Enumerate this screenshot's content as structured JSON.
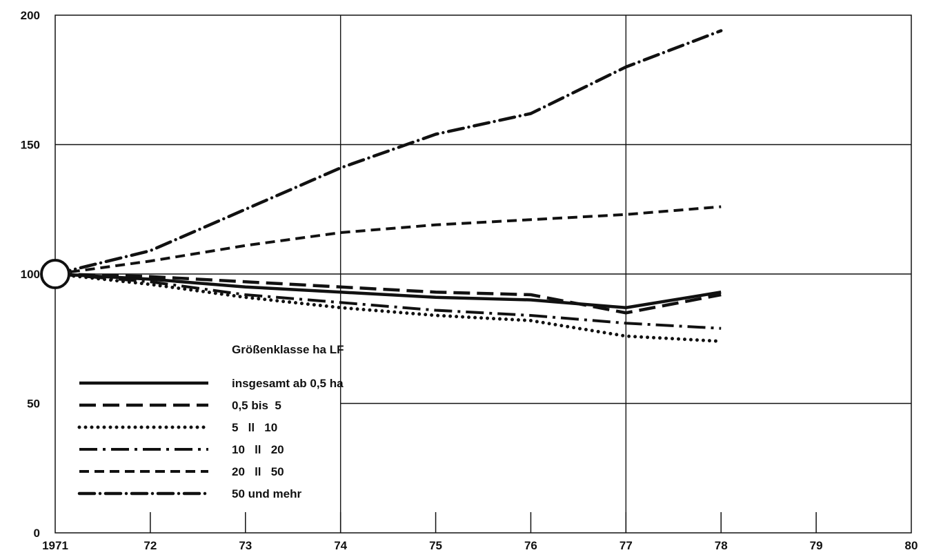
{
  "chart_data": {
    "type": "line",
    "title": "",
    "xlabel": "",
    "ylabel": "",
    "xlim": [
      1971,
      1980
    ],
    "ylim": [
      0,
      200
    ],
    "x_ticks": [
      "1971",
      "72",
      "73",
      "74",
      "75",
      "76",
      "77",
      "78",
      "79",
      "80"
    ],
    "y_ticks": [
      "0",
      "50",
      "100",
      "150",
      "200"
    ],
    "grid": true,
    "legend": {
      "title": "Größenklasse ha LF",
      "placement": "bottom-left",
      "entries": [
        {
          "series": 0,
          "label": "insgesamt ab 0,5 ha"
        },
        {
          "series": 1,
          "label": "0,5 bis  5"
        },
        {
          "series": 2,
          "label": "5   ll   10"
        },
        {
          "series": 3,
          "label": "10   ll   20"
        },
        {
          "series": 4,
          "label": "20   ll   50"
        },
        {
          "series": 5,
          "label": "50 und mehr"
        }
      ]
    },
    "x": [
      1971,
      1972,
      1973,
      1974,
      1975,
      1976,
      1977,
      1978
    ],
    "series": [
      {
        "name": "insgesamt ab 0,5 ha",
        "style": "solid",
        "values": [
          100,
          98,
          95,
          93,
          91,
          90,
          87,
          93
        ]
      },
      {
        "name": "0,5 bis 5",
        "style": "long-dash",
        "values": [
          100,
          99,
          97,
          95,
          93,
          92,
          85,
          92
        ]
      },
      {
        "name": "5 ll 10",
        "style": "dotted",
        "values": [
          100,
          96,
          91,
          87,
          84,
          82,
          76,
          74
        ]
      },
      {
        "name": "10 ll 20",
        "style": "dash-dot",
        "values": [
          100,
          97,
          92,
          89,
          86,
          84,
          81,
          79
        ]
      },
      {
        "name": "20 ll 50",
        "style": "short-dash",
        "values": [
          100,
          105,
          111,
          116,
          119,
          121,
          123,
          126
        ]
      },
      {
        "name": "50 und mehr",
        "style": "dash-dot-heavy",
        "values": [
          100,
          109,
          125,
          141,
          154,
          162,
          180,
          194
        ]
      }
    ],
    "colors": {
      "line": "#111111",
      "grid": "#111111",
      "background": "#ffffff"
    }
  }
}
